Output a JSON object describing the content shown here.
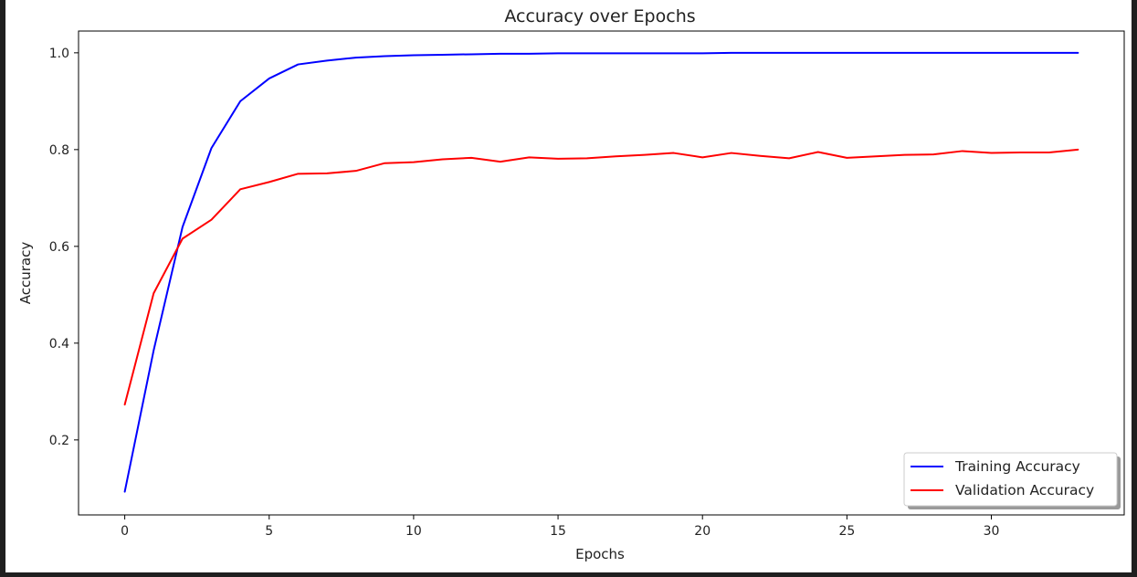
{
  "chart_data": {
    "type": "line",
    "title": "Accuracy over Epochs",
    "xlabel": "Epochs",
    "ylabel": "Accuracy",
    "xlim": [
      -1.6,
      34.6
    ],
    "ylim": [
      0.045,
      1.045
    ],
    "xticks": [
      0,
      5,
      10,
      15,
      20,
      25,
      30
    ],
    "yticks": [
      0.2,
      0.4,
      0.6,
      0.8,
      1.0
    ],
    "xtick_labels": [
      "0",
      "5",
      "10",
      "15",
      "20",
      "25",
      "30"
    ],
    "ytick_labels": [
      "0.2",
      "0.4",
      "0.6",
      "0.8",
      "1.0"
    ],
    "grid": false,
    "legend_position": "bottom-right",
    "x": [
      0,
      1,
      2,
      3,
      4,
      5,
      6,
      7,
      8,
      9,
      10,
      11,
      12,
      13,
      14,
      15,
      16,
      17,
      18,
      19,
      20,
      21,
      22,
      23,
      24,
      25,
      26,
      27,
      28,
      29,
      30,
      31,
      32,
      33
    ],
    "series": [
      {
        "name": "Training Accuracy",
        "color": "#0000ff",
        "values": [
          0.093,
          0.385,
          0.64,
          0.803,
          0.9,
          0.947,
          0.976,
          0.984,
          0.99,
          0.993,
          0.995,
          0.996,
          0.997,
          0.998,
          0.998,
          0.999,
          0.999,
          0.999,
          0.999,
          0.999,
          0.999,
          1.0,
          1.0,
          1.0,
          1.0,
          1.0,
          1.0,
          1.0,
          1.0,
          1.0,
          1.0,
          1.0,
          1.0,
          1.0
        ]
      },
      {
        "name": "Validation Accuracy",
        "color": "#ff0000",
        "values": [
          0.273,
          0.503,
          0.616,
          0.655,
          0.718,
          0.733,
          0.75,
          0.751,
          0.756,
          0.772,
          0.774,
          0.78,
          0.783,
          0.775,
          0.784,
          0.781,
          0.782,
          0.786,
          0.789,
          0.793,
          0.784,
          0.793,
          0.787,
          0.782,
          0.795,
          0.783,
          0.786,
          0.789,
          0.79,
          0.797,
          0.793,
          0.794,
          0.794,
          0.8
        ]
      }
    ]
  }
}
